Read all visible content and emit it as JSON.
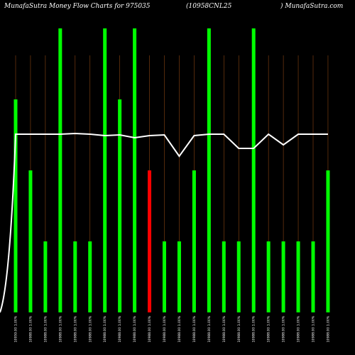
{
  "header": {
    "left": "MunafaSutra  Money Flow  Charts for 975035",
    "middle": "(10958CNL25",
    "right": ") MunafaSutra.com"
  },
  "chart_data": {
    "type": "bar",
    "ylim": [
      0,
      400
    ],
    "line_ylim": [
      0,
      400
    ],
    "colors": {
      "up": "#00ff00",
      "down": "#ff0000",
      "grid": "#8b4513",
      "line": "#ffffff",
      "background": "#000000"
    },
    "categories": [
      "10959.00 1.00%",
      "10988.00 1.00%",
      "10988.00 1.00%",
      "10988.00 1.00%",
      "10988.00 1.00%",
      "10988.00 1.00%",
      "10988.00 1.00%",
      "10988.00 1.00%",
      "10988.00 1.00%",
      "10988.00 1.00%",
      "10988.00 1.00%",
      "10988.00 1.00%",
      "10988.00 1.00%",
      "10988.00 1.00%",
      "10988.00 1.00%",
      "10988.00 1.00%",
      "10988.00 1.00%",
      "10988.00 1.00%",
      "10988.00 1.00%",
      "10988.00 1.00%",
      "10988.00 1.00%",
      "10988.00 1.00%"
    ],
    "series": [
      {
        "values": [
          300,
          200,
          100,
          400,
          100,
          100,
          400,
          300,
          400,
          200,
          100,
          100,
          200,
          400,
          100,
          100,
          400,
          100,
          100,
          100,
          100,
          200
        ],
        "colors": [
          "up",
          "up",
          "up",
          "up",
          "up",
          "up",
          "up",
          "up",
          "up",
          "down",
          "up",
          "up",
          "up",
          "up",
          "up",
          "up",
          "up",
          "up",
          "up",
          "up",
          "up",
          "up"
        ]
      },
      {
        "values": [
          251,
          251,
          251,
          251,
          252,
          251,
          249,
          250,
          246,
          249,
          250,
          220,
          249,
          251,
          251,
          231,
          231,
          251,
          236,
          251,
          251,
          251
        ]
      }
    ]
  }
}
